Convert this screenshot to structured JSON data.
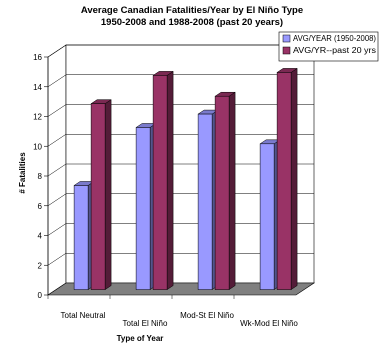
{
  "chart_data": {
    "type": "bar",
    "title_line1": "Average Canadian Fatalities/Year by El Niño Type",
    "title_line2": "1950-2008 and 1988-2008 (past 20 years)",
    "xlabel": "Type of Year",
    "ylabel": "# Fatalities",
    "categories": [
      "Total Neutral",
      "Total El Niño",
      "Mod-St El Niño",
      "Wk-Mod El Niño"
    ],
    "series": [
      {
        "name": "AVG/YEAR (1950-2008)",
        "values": [
          7.0,
          10.9,
          11.8,
          9.8
        ],
        "color": "#9999ff"
      },
      {
        "name": "AVG/YR--past 20 yrs",
        "values": [
          12.5,
          14.4,
          13.0,
          14.6
        ],
        "color": "#993366"
      }
    ],
    "ylim": [
      0,
      16
    ],
    "yticks": [
      0,
      2,
      4,
      6,
      8,
      10,
      12,
      14,
      16
    ],
    "grid": true,
    "legend_position": "top-right",
    "floor_color": "#808080"
  }
}
